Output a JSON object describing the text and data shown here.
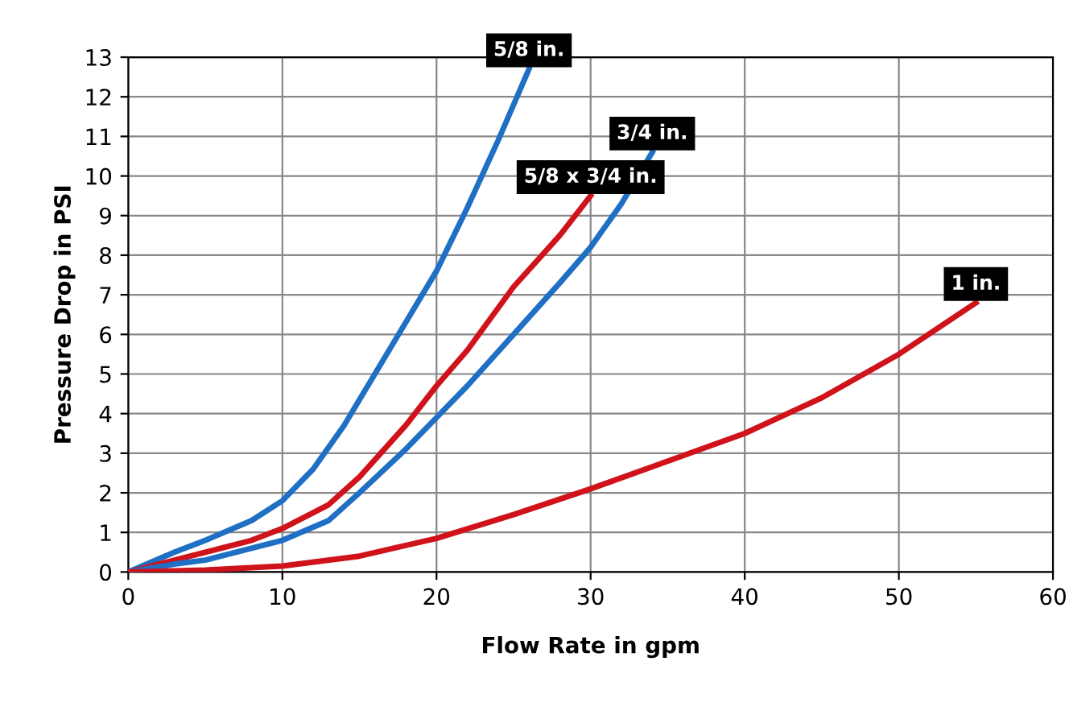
{
  "chart_data": {
    "type": "line",
    "xlabel": "Flow Rate in gpm",
    "ylabel": "Pressure Drop in PSI",
    "xlim": [
      0,
      60
    ],
    "ylim": [
      0,
      13
    ],
    "xticks": [
      0,
      10,
      20,
      30,
      40,
      50,
      60
    ],
    "yticks": [
      0,
      1,
      2,
      3,
      4,
      5,
      6,
      7,
      8,
      9,
      10,
      11,
      12,
      13
    ],
    "grid": true,
    "legend": false,
    "marker": "none",
    "line_style": "solid",
    "series": [
      {
        "name": "5/8 in.",
        "color": "#1f6fc4",
        "x": [
          0,
          3,
          5,
          8,
          10,
          12,
          14,
          16,
          18,
          20,
          22,
          24,
          26
        ],
        "values": [
          0,
          0.5,
          0.8,
          1.3,
          1.8,
          2.6,
          3.7,
          5,
          6.3,
          7.6,
          9.2,
          10.9,
          12.7
        ]
      },
      {
        "name": "5/8 x 3/4 in.",
        "color": "#d0121b",
        "x": [
          0,
          3,
          5,
          8,
          10,
          13,
          15,
          18,
          20,
          22,
          25,
          28,
          30
        ],
        "values": [
          0,
          0.3,
          0.5,
          0.8,
          1.1,
          1.7,
          2.4,
          3.7,
          4.7,
          5.6,
          7.2,
          8.5,
          9.5
        ]
      },
      {
        "name": "3/4 in.",
        "color": "#1f6fc4",
        "x": [
          0,
          3,
          5,
          8,
          10,
          13,
          15,
          18,
          20,
          22,
          25,
          28,
          30,
          32,
          34
        ],
        "values": [
          0,
          0.2,
          0.3,
          0.6,
          0.8,
          1.3,
          2,
          3.1,
          3.9,
          4.7,
          6,
          7.3,
          8.2,
          9.3,
          10.6
        ]
      },
      {
        "name": "1 in.",
        "color": "#d0121b",
        "x": [
          0,
          5,
          10,
          15,
          20,
          25,
          30,
          35,
          40,
          45,
          50,
          55
        ],
        "values": [
          0,
          0.05,
          0.15,
          0.4,
          0.85,
          1.45,
          2.1,
          2.8,
          3.5,
          4.4,
          5.5,
          6.8
        ]
      }
    ]
  }
}
